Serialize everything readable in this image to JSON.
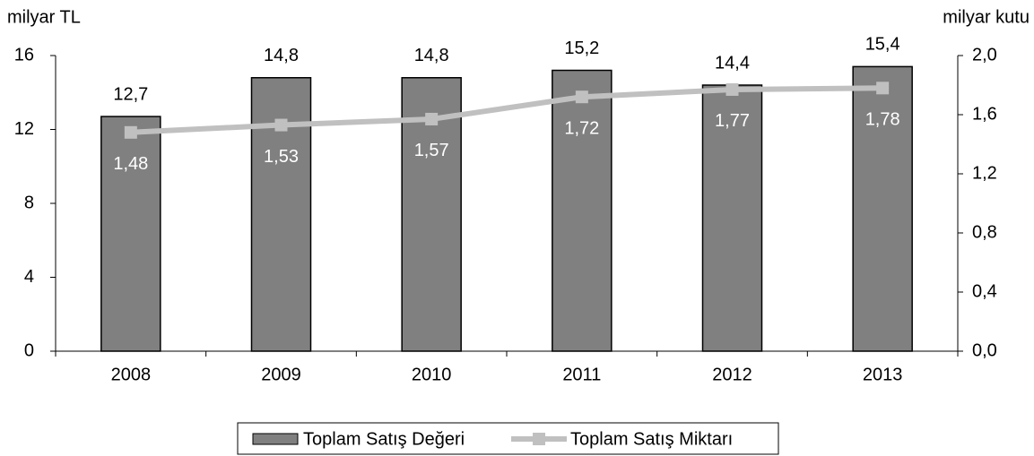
{
  "chart_data": {
    "type": "bar",
    "y_label": "milyar TL",
    "y2_label": "milyar kutu",
    "categories": [
      "2008",
      "2009",
      "2010",
      "2011",
      "2012",
      "2013"
    ],
    "series": [
      {
        "name": "Toplam Satış Değeri",
        "type": "bar",
        "color": "#808080",
        "values": [
          12.7,
          14.8,
          14.8,
          15.2,
          14.4,
          15.4
        ],
        "value_labels": [
          "12,7",
          "14,8",
          "14,8",
          "15,2",
          "14,4",
          "15,4"
        ]
      },
      {
        "name": "Toplam Satış Miktarı",
        "type": "line",
        "axis": "y2",
        "color": "#c0c0c0",
        "values": [
          1.48,
          1.53,
          1.57,
          1.72,
          1.77,
          1.78
        ],
        "value_labels": [
          "1,48",
          "1,53",
          "1,57",
          "1,72",
          "1,77",
          "1,78"
        ]
      }
    ],
    "ylim": [
      0,
      16
    ],
    "yticks": [
      0,
      4,
      8,
      12,
      16
    ],
    "y2lim": [
      0,
      2
    ],
    "y2ticks": [
      {
        "value": 0,
        "label": "0,0"
      },
      {
        "value": 0.4,
        "label": "0,4"
      },
      {
        "value": 0.8,
        "label": "0,8"
      },
      {
        "value": 1.2,
        "label": "1,2"
      },
      {
        "value": 1.6,
        "label": "1,6"
      },
      {
        "value": 2,
        "label": "2,0"
      }
    ],
    "legend": "bottom",
    "grid": false
  }
}
